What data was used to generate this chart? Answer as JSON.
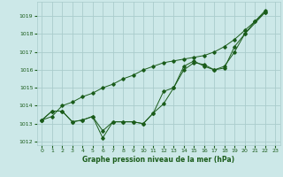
{
  "title": "Graphe pression niveau de la mer (hPa)",
  "bg_color": "#cce8e8",
  "grid_color": "#aacccc",
  "line_color": "#1a5c1a",
  "marker_color": "#1a5c1a",
  "xlim": [
    -0.5,
    23.5
  ],
  "ylim": [
    1011.8,
    1019.8
  ],
  "yticks": [
    1012,
    1013,
    1014,
    1015,
    1016,
    1017,
    1018,
    1019
  ],
  "xticks": [
    0,
    1,
    2,
    3,
    4,
    5,
    6,
    7,
    8,
    9,
    10,
    11,
    12,
    13,
    14,
    15,
    16,
    17,
    18,
    19,
    20,
    21,
    22,
    23
  ],
  "series": [
    [
      1013.2,
      1013.7,
      1013.7,
      1013.1,
      1013.2,
      1013.4,
      1012.2,
      1013.1,
      1013.1,
      1013.1,
      1013.0,
      1013.6,
      1014.1,
      1015.0,
      1016.2,
      1016.5,
      1016.2,
      1016.0,
      1016.1,
      1017.3,
      1018.0,
      1018.7,
      1019.2
    ],
    [
      1013.2,
      1013.7,
      1013.7,
      1013.1,
      1013.2,
      1013.4,
      1012.6,
      1013.1,
      1013.1,
      1013.1,
      1013.0,
      1013.6,
      1014.8,
      1015.0,
      1016.0,
      1016.4,
      1016.3,
      1016.0,
      1016.2,
      1017.0,
      1018.0,
      1019.2
    ],
    [
      1013.2,
      1013.4,
      1014.0,
      1014.2,
      1014.5,
      1014.7,
      1015.0,
      1015.2,
      1015.5,
      1015.7,
      1016.0,
      1016.2,
      1016.4,
      1016.5,
      1016.6,
      1016.7,
      1016.8,
      1017.0,
      1017.3,
      1017.7,
      1018.2,
      1018.7,
      1019.3
    ]
  ],
  "series_x": [
    [
      0,
      1,
      2,
      3,
      4,
      5,
      6,
      7,
      8,
      9,
      10,
      11,
      12,
      13,
      14,
      15,
      16,
      17,
      18,
      19,
      20,
      21,
      22
    ],
    [
      0,
      1,
      2,
      3,
      4,
      5,
      6,
      7,
      8,
      9,
      10,
      11,
      12,
      13,
      14,
      15,
      16,
      17,
      18,
      19,
      20,
      22
    ],
    [
      0,
      1,
      2,
      3,
      4,
      5,
      6,
      7,
      8,
      9,
      10,
      11,
      12,
      13,
      14,
      15,
      16,
      17,
      18,
      19,
      20,
      21,
      22
    ]
  ]
}
